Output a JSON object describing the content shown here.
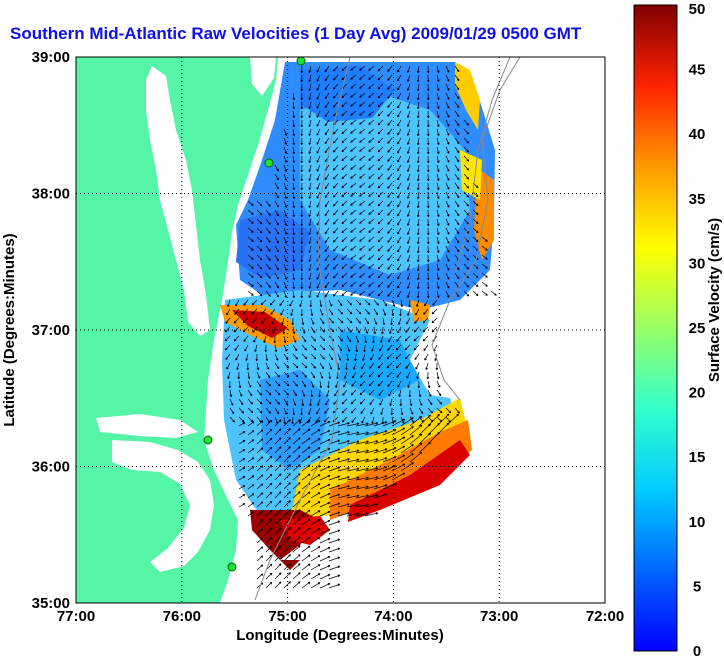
{
  "chart_data": {
    "type": "heatmap",
    "title": "Southern Mid-Atlantic Raw Velocities (1 Day Avg) 2009/01/29 0500 GMT",
    "xlabel": "Longitude (Degrees:Minutes)",
    "ylabel": "Latitude (Degrees:Minutes)",
    "x_ticks": [
      "77:00",
      "76:00",
      "75:00",
      "74:00",
      "73:00",
      "72:00"
    ],
    "y_ticks": [
      "39:00",
      "38:00",
      "37:00",
      "36:00",
      "35:00"
    ],
    "xlim": [
      -77,
      -72
    ],
    "ylim": [
      35,
      39
    ],
    "grid": true,
    "colorbar": {
      "label": "Surface Velocity (cm/s)",
      "ticks": [
        "0",
        "5",
        "10",
        "15",
        "20",
        "25",
        "30",
        "35",
        "40",
        "45",
        "50"
      ],
      "range": [
        0,
        50
      ],
      "colormap": "jet"
    },
    "colors": {
      "land": "#55f5a8",
      "water_background": "#ffffff",
      "title": "#1010e6"
    }
  }
}
